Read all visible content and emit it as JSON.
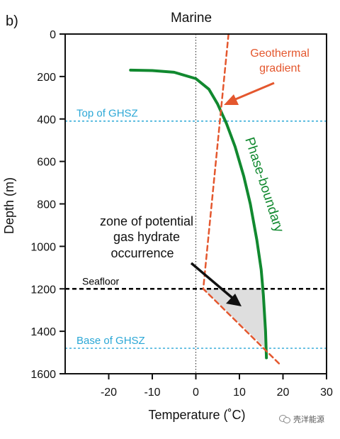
{
  "chart_data": {
    "type": "line",
    "panel_label": "b)",
    "title": "Marine",
    "xlabel": "Temperature (˚C)",
    "ylabel": "Depth (m)",
    "xlim": [
      -30,
      30
    ],
    "ylim": [
      1600,
      0
    ],
    "x_ticks": [
      -20,
      -10,
      0,
      10,
      20,
      30
    ],
    "y_ticks": [
      0,
      200,
      400,
      600,
      800,
      1000,
      1200,
      1400,
      1600
    ],
    "series": [
      {
        "name": "Phase-boundary",
        "color": "#11892f",
        "style": "solid",
        "x": [
          -15,
          -10,
          -5,
          0,
          3,
          5,
          7,
          9,
          11,
          12.5,
          14,
          15,
          15.5,
          16,
          16.2
        ],
        "y": [
          170,
          172,
          180,
          210,
          260,
          330,
          420,
          530,
          670,
          800,
          970,
          1110,
          1230,
          1400,
          1525
        ]
      },
      {
        "name": "Geothermal gradient",
        "color": "#e4572e",
        "style": "dashed",
        "x": [
          7.5,
          1.7,
          19.5
        ],
        "y": [
          0,
          1200,
          1560
        ]
      }
    ],
    "reference_lines": [
      {
        "label": "Top of GHSZ",
        "y": 410,
        "color": "#2aa7d6"
      },
      {
        "label": "Seafloor",
        "y": 1200,
        "color": "#000000"
      },
      {
        "label": "Base of GHSZ",
        "y": 1480,
        "color": "#2aa7d6"
      }
    ],
    "annotations": [
      {
        "text": "Geothermal gradient",
        "color": "#e4572e"
      },
      {
        "text": "zone of potential gas hydrate occurrence",
        "lines": [
          "zone of potential",
          "gas hydrate",
          "occurrence"
        ]
      }
    ],
    "shaded_region": {
      "vertices": [
        [
          1.7,
          1200
        ],
        [
          15.5,
          1200
        ],
        [
          16,
          1480
        ]
      ],
      "color": "#dedede"
    },
    "vertical_reference_x": 0,
    "grid": false
  },
  "watermark": {
    "text": "壳洋能源",
    "icon": "wechat-icon"
  }
}
